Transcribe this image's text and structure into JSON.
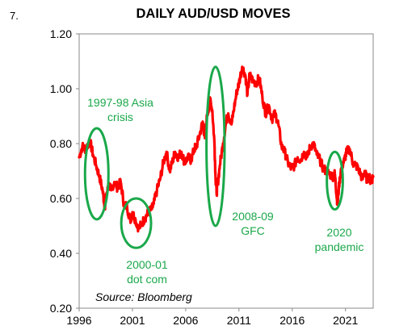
{
  "figure_number": "7.",
  "chart_data": {
    "type": "line",
    "title": "DAILY AUD/USD MOVES",
    "xlabel": "",
    "ylabel": "",
    "xlim": [
      1996,
      2023.6
    ],
    "ylim": [
      0.2,
      1.2
    ],
    "x_ticks": [
      "1996",
      "2001",
      "2006",
      "2011",
      "2016",
      "2021"
    ],
    "y_ticks": [
      "0.20",
      "0.40",
      "0.60",
      "0.80",
      "1.00",
      "1.20"
    ],
    "grid": false,
    "legend": "none",
    "source": "Source: Bloomberg",
    "series": [
      {
        "color": "#ff0000",
        "x": [
          1996.0,
          1996.3,
          1996.6,
          1997.0,
          1997.3,
          1997.6,
          1997.9,
          1998.2,
          1998.4,
          1998.6,
          1998.8,
          1999.0,
          1999.3,
          1999.6,
          1999.9,
          2000.2,
          2000.5,
          2000.8,
          2001.0,
          2001.3,
          2001.6,
          2001.9,
          2002.2,
          2002.5,
          2002.8,
          2003.0,
          2003.3,
          2003.6,
          2003.9,
          2004.2,
          2004.5,
          2004.8,
          2005.0,
          2005.3,
          2005.6,
          2005.9,
          2006.2,
          2006.5,
          2006.8,
          2007.0,
          2007.3,
          2007.6,
          2007.8,
          2008.0,
          2008.3,
          2008.5,
          2008.7,
          2008.8,
          2008.9,
          2009.0,
          2009.2,
          2009.5,
          2009.8,
          2010.0,
          2010.3,
          2010.5,
          2010.8,
          2011.0,
          2011.3,
          2011.6,
          2011.8,
          2012.0,
          2012.3,
          2012.6,
          2012.9,
          2013.2,
          2013.5,
          2013.8,
          2014.1,
          2014.4,
          2014.7,
          2015.0,
          2015.3,
          2015.6,
          2015.9,
          2016.2,
          2016.5,
          2016.8,
          2017.1,
          2017.4,
          2017.7,
          2018.0,
          2018.3,
          2018.6,
          2018.9,
          2019.2,
          2019.5,
          2019.8,
          2020.0,
          2020.15,
          2020.25,
          2020.4,
          2020.6,
          2020.9,
          2021.1,
          2021.4,
          2021.7,
          2022.0,
          2022.3,
          2022.6,
          2022.8,
          2023.0,
          2023.2,
          2023.4,
          2023.6
        ],
        "values": [
          0.75,
          0.79,
          0.78,
          0.81,
          0.76,
          0.72,
          0.68,
          0.63,
          0.57,
          0.62,
          0.65,
          0.63,
          0.66,
          0.64,
          0.66,
          0.58,
          0.57,
          0.52,
          0.55,
          0.52,
          0.49,
          0.51,
          0.53,
          0.55,
          0.56,
          0.58,
          0.63,
          0.67,
          0.73,
          0.77,
          0.7,
          0.74,
          0.77,
          0.75,
          0.77,
          0.73,
          0.75,
          0.74,
          0.78,
          0.79,
          0.83,
          0.88,
          0.82,
          0.9,
          0.96,
          0.92,
          0.8,
          0.68,
          0.62,
          0.65,
          0.72,
          0.8,
          0.88,
          0.91,
          0.87,
          0.92,
          0.99,
          1.02,
          1.08,
          1.05,
          0.98,
          1.05,
          1.03,
          1.02,
          1.04,
          0.97,
          0.91,
          0.94,
          0.89,
          0.91,
          0.87,
          0.79,
          0.77,
          0.73,
          0.71,
          0.72,
          0.75,
          0.74,
          0.77,
          0.75,
          0.79,
          0.8,
          0.76,
          0.74,
          0.71,
          0.7,
          0.69,
          0.68,
          0.69,
          0.62,
          0.58,
          0.65,
          0.71,
          0.74,
          0.77,
          0.78,
          0.73,
          0.72,
          0.7,
          0.67,
          0.7,
          0.67,
          0.68,
          0.66,
          0.68
        ]
      }
    ],
    "annotations": [
      {
        "text": [
          "1997-98 Asia",
          "crisis"
        ],
        "color": "#1aa84a",
        "ellipse": {
          "cx": 1997.65,
          "cy": 0.69,
          "rx": 1.1,
          "ry": 0.166
        }
      },
      {
        "text": [
          "2000-01",
          "dot com"
        ],
        "color": "#1aa84a",
        "ellipse": {
          "cx": 2001.35,
          "cy": 0.51,
          "rx": 1.4,
          "ry": 0.09
        }
      },
      {
        "text": [
          "2008-09",
          "GFC"
        ],
        "color": "#1aa84a",
        "ellipse": {
          "cx": 2008.8,
          "cy": 0.79,
          "rx": 0.85,
          "ry": 0.29
        }
      },
      {
        "text": [
          "2020",
          "pandemic"
        ],
        "color": "#1aa84a",
        "ellipse": {
          "cx": 2020.0,
          "cy": 0.665,
          "rx": 0.75,
          "ry": 0.105
        }
      }
    ]
  }
}
